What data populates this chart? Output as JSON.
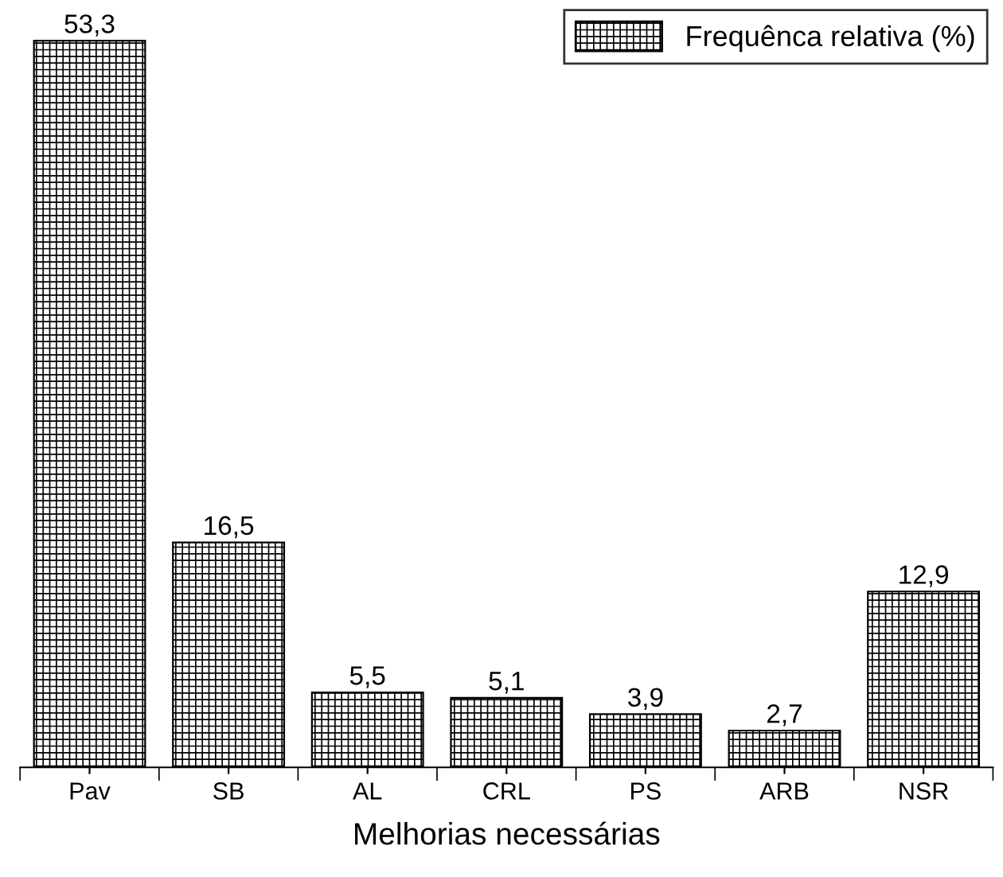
{
  "chart_data": {
    "type": "bar",
    "xlabel": "Melhorias necessárias",
    "categories": [
      "Pav",
      "SB",
      "AL",
      "CRL",
      "PS",
      "ARB",
      "NSR"
    ],
    "series": [
      {
        "name": "Frequênca relativa (%)",
        "color": "#000000",
        "values": [
          53.3,
          16.5,
          5.5,
          5.1,
          3.9,
          2.7,
          12.9
        ],
        "value_labels": [
          "53,3",
          "16,5",
          "5,5",
          "5,1",
          "3,9",
          "2,7",
          "12,9"
        ]
      }
    ],
    "legend": "top right",
    "grid": false,
    "tick_labels": "x"
  }
}
